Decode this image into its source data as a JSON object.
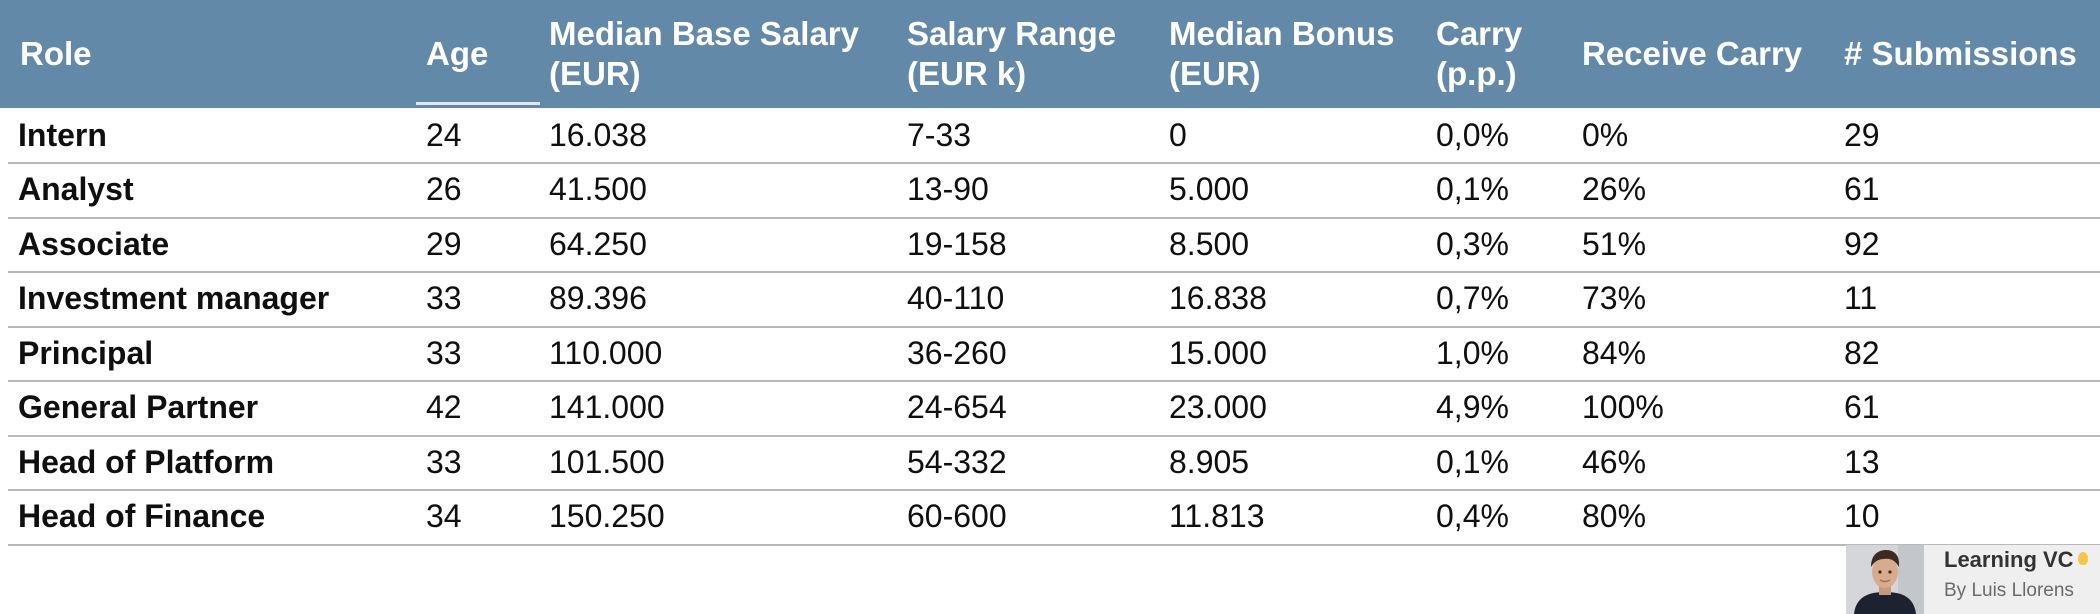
{
  "table": {
    "headers": {
      "role": "Role",
      "age": "Age",
      "base_salary_line1": "Median Base Salary",
      "base_salary_line2": "(EUR)",
      "salary_range_line1": "Salary Range",
      "salary_range_line2": "(EUR k)",
      "bonus_line1": "Median Bonus",
      "bonus_line2": "(EUR)",
      "carry_line1": "Carry",
      "carry_line2": "(p.p.)",
      "receive_carry": "Receive Carry",
      "submissions": "# Submissions"
    },
    "rows": [
      {
        "role": "Intern",
        "age": "24",
        "base_salary": "16.038",
        "salary_range": "7-33",
        "bonus": "0",
        "carry": "0,0%",
        "receive_carry": "0%",
        "submissions": "29"
      },
      {
        "role": "Analyst",
        "age": "26",
        "base_salary": "41.500",
        "salary_range": "13-90",
        "bonus": "5.000",
        "carry": "0,1%",
        "receive_carry": "26%",
        "submissions": "61"
      },
      {
        "role": "Associate",
        "age": "29",
        "base_salary": "64.250",
        "salary_range": "19-158",
        "bonus": "8.500",
        "carry": "0,3%",
        "receive_carry": "51%",
        "submissions": "92"
      },
      {
        "role": "Investment manager",
        "age": "33",
        "base_salary": "89.396",
        "salary_range": "40-110",
        "bonus": "16.838",
        "carry": "0,7%",
        "receive_carry": "73%",
        "submissions": "11"
      },
      {
        "role": "Principal",
        "age": "33",
        "base_salary": "110.000",
        "salary_range": "36-260",
        "bonus": "15.000",
        "carry": "1,0%",
        "receive_carry": "84%",
        "submissions": "82"
      },
      {
        "role": "General Partner",
        "age": "42",
        "base_salary": "141.000",
        "salary_range": "24-654",
        "bonus": "23.000",
        "carry": "4,9%",
        "receive_carry": "100%",
        "submissions": "61"
      },
      {
        "role": "Head of Platform",
        "age": "33",
        "base_salary": "101.500",
        "salary_range": "54-332",
        "bonus": "8.905",
        "carry": "0,1%",
        "receive_carry": "46%",
        "submissions": "13"
      },
      {
        "role": "Head of Finance",
        "age": "34",
        "base_salary": "150.250",
        "salary_range": "60-600",
        "bonus": "11.813",
        "carry": "0,4%",
        "receive_carry": "80%",
        "submissions": "10"
      }
    ]
  },
  "footer": {
    "brand_title": "Learning VC",
    "brand_subtitle": "By Luis Llorens",
    "icon": "lightbulb-icon"
  },
  "colors": {
    "header_bg": "#6389a9",
    "header_text": "#ffffff",
    "row_divider": "#b9b9b9"
  }
}
